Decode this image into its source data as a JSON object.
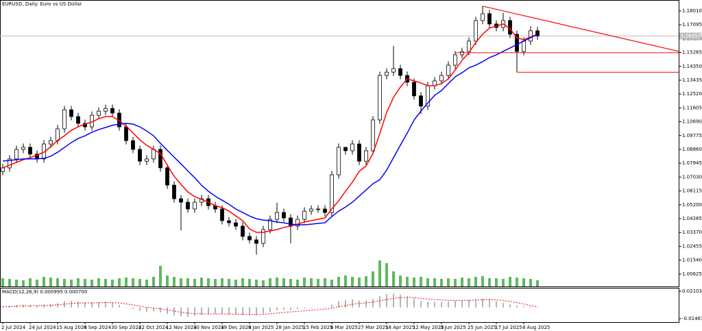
{
  "chart_data": [
    {
      "type": "candlestick",
      "title": "EURUSD, Daily:  Euro vs US Dollar",
      "categories": [
        "2 Jul 2024",
        null,
        null,
        null,
        "24 Jul 2024",
        null,
        null,
        null,
        "15 Aug 2024",
        null,
        null,
        null,
        "6 Sep 2024",
        null,
        null,
        null,
        "30 Sep 2024",
        null,
        null,
        null,
        "22 Oct 2024",
        null,
        null,
        null,
        "12 Nov 2024",
        null,
        null,
        null,
        "30 Nov 2024",
        null,
        null,
        null,
        "19 Dec 2024",
        null,
        null,
        null,
        "9 Jan 2025",
        null,
        null,
        null,
        "28 Jan 2025",
        null,
        null,
        null,
        "15 Feb 2025",
        null,
        null,
        null,
        "6 Mar 2025",
        null,
        null,
        null,
        "27 Mar 2025",
        null,
        null,
        null,
        "18 Apr 2025",
        null,
        null,
        null,
        "12 May 2025",
        null,
        null,
        null,
        "3 Jun 2025",
        null,
        null,
        null,
        "25 Jun 2025",
        null,
        null,
        null,
        "17 Jul 2025",
        null,
        null,
        null,
        "8 Aug 2025",
        null,
        null
      ],
      "open": [
        1.074,
        1.0764,
        1.0823,
        1.0886,
        1.09,
        1.0855,
        1.0823,
        1.0922,
        1.0944,
        1.1022,
        1.1148,
        1.1103,
        1.1058,
        1.1035,
        1.1112,
        1.1139,
        1.1157,
        1.1126,
        1.1035,
        1.0944,
        1.0886,
        1.0808,
        1.0823,
        1.0886,
        1.0764,
        1.065,
        1.056,
        1.0537,
        1.0492,
        1.0537,
        1.056,
        1.0514,
        1.0492,
        1.0415,
        1.0401,
        1.0379,
        1.0311,
        1.0288,
        1.0265,
        1.0356,
        1.0424,
        1.0469,
        1.0433,
        1.0379,
        1.0424,
        1.0478,
        1.0492,
        1.0492,
        1.0469,
        1.0718,
        1.09,
        1.0877,
        1.0922,
        1.0808,
        1.0877,
        1.1081,
        1.1375,
        1.1397,
        1.142,
        1.1375,
        1.133,
        1.124,
        1.1172,
        1.1307,
        1.1339,
        1.1375,
        1.1443,
        1.1511,
        1.1533,
        1.1602,
        1.1738,
        1.1783,
        1.1715,
        1.1692,
        1.1738,
        1.1647,
        1.1533,
        1.1602,
        1.167
      ],
      "high": [
        1.0789,
        1.0848,
        1.0911,
        1.0925,
        1.0925,
        1.088,
        1.0947,
        1.0969,
        1.1047,
        1.1173,
        1.1173,
        1.1128,
        1.1083,
        1.1137,
        1.1164,
        1.1182,
        1.1182,
        1.1151,
        1.106,
        1.0969,
        1.0911,
        1.0848,
        1.0911,
        1.0911,
        1.0789,
        1.0675,
        1.0585,
        1.0562,
        1.0562,
        1.0585,
        1.0585,
        1.0539,
        1.0517,
        1.044,
        1.0426,
        1.0404,
        1.0336,
        1.0313,
        1.0381,
        1.0449,
        1.0533,
        1.0494,
        1.0458,
        1.0449,
        1.0503,
        1.0517,
        1.0517,
        1.0517,
        1.0743,
        1.0925,
        1.0902,
        1.0947,
        1.0947,
        1.0902,
        1.1106,
        1.14,
        1.1422,
        1.157,
        1.1445,
        1.14,
        1.1355,
        1.1265,
        1.1332,
        1.1364,
        1.14,
        1.1468,
        1.1536,
        1.1558,
        1.1627,
        1.1763,
        1.1833,
        1.1808,
        1.174,
        1.1788,
        1.1763,
        1.1672,
        1.1627,
        1.17,
        1.1695
      ],
      "low": [
        1.0715,
        1.0739,
        1.0798,
        1.0861,
        1.083,
        1.0798,
        1.0798,
        1.0897,
        1.0919,
        1.0997,
        1.1078,
        1.1033,
        1.101,
        1.101,
        1.1087,
        1.1114,
        1.1101,
        1.101,
        1.0919,
        1.0861,
        1.0783,
        1.0783,
        1.0798,
        1.0739,
        1.0625,
        1.0535,
        1.035,
        1.0467,
        1.0467,
        1.0512,
        1.0489,
        1.0467,
        1.039,
        1.0376,
        1.0354,
        1.0286,
        1.0263,
        1.019,
        1.024,
        1.0331,
        1.0399,
        1.0408,
        1.0265,
        1.0354,
        1.0399,
        1.0453,
        1.0467,
        1.0444,
        1.0444,
        1.0693,
        1.0852,
        1.0852,
        1.0783,
        1.0783,
        1.0852,
        1.1056,
        1.135,
        1.1372,
        1.135,
        1.1305,
        1.1215,
        1.112,
        1.1147,
        1.1282,
        1.1314,
        1.135,
        1.1418,
        1.1486,
        1.1508,
        1.1577,
        1.1713,
        1.169,
        1.1667,
        1.1667,
        1.1622,
        1.1396,
        1.1508,
        1.1577,
        1.1611
      ],
      "close": [
        1.0764,
        1.0823,
        1.0886,
        1.09,
        1.0855,
        1.0823,
        1.0922,
        1.0944,
        1.1022,
        1.1148,
        1.1103,
        1.1058,
        1.1035,
        1.1112,
        1.1139,
        1.1157,
        1.1126,
        1.1035,
        1.0944,
        1.0886,
        1.0808,
        1.0823,
        1.0886,
        1.0764,
        1.065,
        1.056,
        1.0537,
        1.0492,
        1.0537,
        1.056,
        1.0514,
        1.0492,
        1.0415,
        1.0401,
        1.0379,
        1.0311,
        1.0288,
        1.0265,
        1.0356,
        1.0424,
        1.0469,
        1.0433,
        1.0379,
        1.0424,
        1.0478,
        1.0492,
        1.0492,
        1.0469,
        1.0718,
        1.09,
        1.0877,
        1.0922,
        1.0808,
        1.0877,
        1.1081,
        1.1375,
        1.1397,
        1.142,
        1.1375,
        1.133,
        1.124,
        1.1172,
        1.1307,
        1.1339,
        1.1375,
        1.1443,
        1.1511,
        1.1533,
        1.1602,
        1.1738,
        1.1783,
        1.1715,
        1.1692,
        1.1738,
        1.1647,
        1.1533,
        1.1602,
        1.167,
        1.1636
      ],
      "color": "#000000",
      "series": [
        {
          "color": "#ff0000",
          "values": [
            1.0764,
            1.0782,
            1.08,
            1.0818,
            1.0831,
            1.0849,
            1.0867,
            1.0903,
            1.0945,
            1.0976,
            1.1012,
            1.1035,
            1.1053,
            1.1067,
            1.1089,
            1.1103,
            1.1103,
            1.1076,
            1.104,
            1.0995,
            1.0949,
            1.0913,
            1.0886,
            1.0859,
            1.0782,
            1.0709,
            1.0655,
            1.0605,
            1.0574,
            1.0555,
            1.0537,
            1.0514,
            1.0501,
            1.0478,
            1.0446,
            1.0415,
            1.036,
            1.0338,
            1.0338,
            1.0347,
            1.0356,
            1.037,
            1.0379,
            1.0392,
            1.0406,
            1.0415,
            1.0424,
            1.0433,
            1.0492,
            1.0546,
            1.061,
            1.0669,
            1.0741,
            1.0777,
            1.0859,
            1.099,
            1.1131,
            1.123,
            1.1298,
            1.1352,
            1.1339,
            1.1325,
            1.1307,
            1.1307,
            1.1321,
            1.1352,
            1.1411,
            1.1475,
            1.1525,
            1.1593,
            1.1647,
            1.1688,
            1.1701,
            1.1715,
            1.1683,
            1.1624,
            1.1611,
            1.1629,
            1.1647
          ]
        },
        {
          "color": "#0000ff",
          "values": [
            1.0809,
            1.0813,
            1.0818,
            1.0823,
            1.0823,
            1.0823,
            1.0827,
            1.0841,
            1.0867,
            1.0899,
            1.0931,
            1.0958,
            1.0976,
            1.0999,
            1.1017,
            1.1031,
            1.1045,
            1.1053,
            1.1058,
            1.1053,
            1.1035,
            1.1008,
            1.0976,
            1.0926,
            1.088,
            1.0835,
            1.079,
            1.0744,
            1.0699,
            1.0649,
            1.0609,
            1.0577,
            1.055,
            1.0523,
            1.0492,
            1.0469,
            1.0446,
            1.0428,
            1.0419,
            1.0415,
            1.0406,
            1.0401,
            1.0392,
            1.0388,
            1.0388,
            1.0392,
            1.0397,
            1.0401,
            1.0442,
            1.0478,
            1.0505,
            1.0537,
            1.0577,
            1.0618,
            1.0659,
            1.0686,
            1.0749,
            1.0831,
            1.0913,
            1.0994,
            1.108,
            1.1139,
            1.1193,
            1.1243,
            1.1275,
            1.1321,
            1.1366,
            1.1393,
            1.1425,
            1.1443,
            1.1466,
            1.1493,
            1.1511,
            1.1534,
            1.1556,
            1.1579,
            1.1602,
            1.1624,
            1.1647
          ]
        }
      ],
      "volume": {
        "color": "#5fb85f",
        "values": [
          12,
          11,
          10,
          9,
          12,
          10,
          14,
          13,
          12,
          11,
          10,
          12,
          11,
          10,
          12,
          11,
          10,
          12,
          13,
          12,
          11,
          10,
          14,
          30,
          16,
          14,
          12,
          12,
          11,
          13,
          12,
          11,
          12,
          11,
          10,
          12,
          11,
          10,
          9,
          12,
          13,
          12,
          11,
          10,
          13,
          12,
          11,
          12,
          10,
          14,
          16,
          14,
          13,
          15,
          22,
          38,
          34,
          22,
          16,
          14,
          13,
          14,
          12,
          12,
          11,
          12,
          11,
          13,
          12,
          14,
          15,
          12,
          12,
          11,
          14,
          13,
          12,
          11,
          9
        ]
      },
      "ylim": [
        0.99801,
        1.18735
      ],
      "yticks": [
        {
          "value": 1.1801,
          "label": "1.18010"
        },
        {
          "value": 1.17095,
          "label": "1.17095"
        },
        {
          "value": 1.1618,
          "label": "1.16180"
        },
        {
          "value": 1.15265,
          "label": "1.15265"
        },
        {
          "value": 1.1435,
          "label": "1.14350"
        },
        {
          "value": 1.13435,
          "label": "1.13435"
        },
        {
          "value": 1.1252,
          "label": "1.12520"
        },
        {
          "value": 1.11605,
          "label": "1.11605"
        },
        {
          "value": 1.1069,
          "label": "1.10690"
        },
        {
          "value": 1.09775,
          "label": "1.09775"
        },
        {
          "value": 1.0886,
          "label": "1.08860"
        },
        {
          "value": 1.07945,
          "label": "1.07945"
        },
        {
          "value": 1.0703,
          "label": "1.07030"
        },
        {
          "value": 1.06115,
          "label": "1.06115"
        },
        {
          "value": 1.052,
          "label": "1.05200"
        },
        {
          "value": 1.04285,
          "label": "1.04285"
        },
        {
          "value": 1.0337,
          "label": "1.03370"
        },
        {
          "value": 1.02455,
          "label": "1.02455"
        },
        {
          "value": 1.0154,
          "label": "1.01540"
        },
        {
          "value": 1.00625,
          "label": "1.00625"
        }
      ],
      "price_line": 1.16357,
      "levels": [
        1.1525,
        1.1396
      ],
      "trendline": [
        1.1833,
        1.1534
      ],
      "annotation_color": "#ff0000"
    },
    {
      "type": "macd",
      "title": "MACD(12,26,9) 0.000995 0.000700",
      "values": [
        0.001,
        0.002,
        0.003,
        0.0035,
        0.003,
        0.0025,
        0.0035,
        0.004,
        0.0055,
        0.008,
        0.0085,
        0.0075,
        0.0065,
        0.0065,
        0.0068,
        0.007,
        0.006,
        0.0035,
        0.0005,
        -0.002,
        -0.0045,
        -0.0055,
        -0.005,
        -0.0065,
        -0.0085,
        -0.0105,
        -0.0115,
        -0.012,
        -0.011,
        -0.0095,
        -0.009,
        -0.0085,
        -0.009,
        -0.009,
        -0.0092,
        -0.0098,
        -0.01,
        -0.01,
        -0.008,
        -0.0055,
        -0.0035,
        -0.003,
        -0.0035,
        -0.0025,
        -0.0012,
        -0.0005,
        0.0,
        0.0,
        0.004,
        0.008,
        0.0095,
        0.0105,
        0.009,
        0.009,
        0.011,
        0.015,
        0.017,
        0.018,
        0.0165,
        0.0145,
        0.0115,
        0.008,
        0.0075,
        0.007,
        0.007,
        0.0078,
        0.0085,
        0.009,
        0.0095,
        0.0105,
        0.0115,
        0.011,
        0.008,
        0.006,
        0.004,
        0.0025,
        0.0015,
        0.001,
        0.000995
      ],
      "color": "#b4b4b4",
      "signal": {
        "color": "#ff0000",
        "values": [
          0.0008,
          0.0011,
          0.0015,
          0.0019,
          0.0021,
          0.0022,
          0.0025,
          0.0028,
          0.0033,
          0.0042,
          0.0051,
          0.0056,
          0.0058,
          0.0059,
          0.0061,
          0.0063,
          0.0062,
          0.0057,
          0.0046,
          0.0033,
          0.0017,
          0.0002,
          -0.0008,
          -0.002,
          -0.0033,
          -0.0048,
          -0.0062,
          -0.0074,
          -0.0081,
          -0.0084,
          -0.0085,
          -0.0085,
          -0.0086,
          -0.0087,
          -0.0088,
          -0.009,
          -0.0092,
          -0.0094,
          -0.0091,
          -0.0084,
          -0.0074,
          -0.0065,
          -0.0059,
          -0.0052,
          -0.0044,
          -0.0036,
          -0.0029,
          -0.0023,
          -0.001,
          0.0008,
          0.0025,
          0.0041,
          0.0051,
          0.0059,
          0.0069,
          0.0085,
          0.0102,
          0.0118,
          0.0127,
          0.0131,
          0.0128,
          0.0118,
          0.011,
          0.0102,
          0.0096,
          0.0092,
          0.0091,
          0.0091,
          0.0092,
          0.0095,
          0.0099,
          0.0101,
          0.0098,
          0.009,
          0.0078,
          0.0062,
          0.0044,
          0.0024,
          0.0007
        ]
      },
      "ylim": [
        -0.014673,
        0.021036
      ],
      "yticks": [
        0.021036,
        -0.014673
      ]
    }
  ]
}
